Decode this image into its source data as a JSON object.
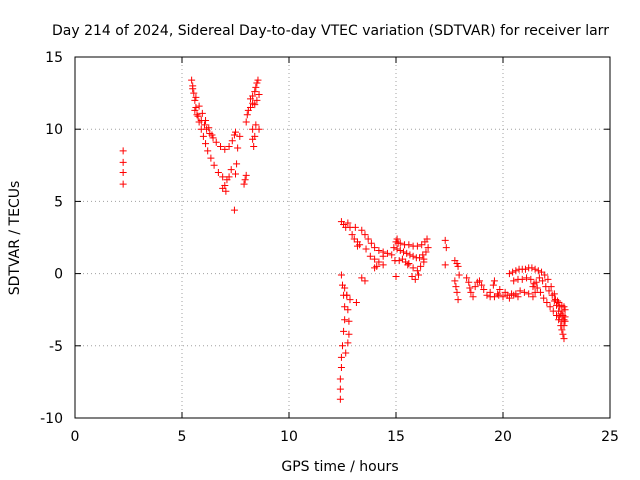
{
  "chart_data": {
    "type": "scatter",
    "title": "Day 214 of 2024, Sidereal Day-to-day VTEC variation (SDTVAR) for receiver larr",
    "xlabel": "GPS time / hours",
    "ylabel": "SDTVAR / TECUs",
    "xlim": [
      0,
      25
    ],
    "ylim": [
      -10,
      15
    ],
    "xticks": [
      "0",
      "5",
      "10",
      "15",
      "20",
      "25"
    ],
    "yticks": [
      "-10",
      "-5",
      "0",
      "5",
      "10",
      "15"
    ],
    "grid": true,
    "marker": "+",
    "color": "#ff0000",
    "series": [
      {
        "name": "SDTVAR",
        "points": [
          [
            2.25,
            8.5
          ],
          [
            2.25,
            7.7
          ],
          [
            2.25,
            7.0
          ],
          [
            2.25,
            6.2
          ],
          [
            5.45,
            13.4
          ],
          [
            5.5,
            13.0
          ],
          [
            5.55,
            12.5
          ],
          [
            5.6,
            12.0
          ],
          [
            5.65,
            11.5
          ],
          [
            5.7,
            11.0
          ],
          [
            5.8,
            10.5
          ],
          [
            5.9,
            10.0
          ],
          [
            6.0,
            9.5
          ],
          [
            6.1,
            9.0
          ],
          [
            6.2,
            8.5
          ],
          [
            6.35,
            8.0
          ],
          [
            6.5,
            7.5
          ],
          [
            6.7,
            7.0
          ],
          [
            6.9,
            6.7
          ],
          [
            7.1,
            6.5
          ],
          [
            7.2,
            6.7
          ],
          [
            7.3,
            7.2
          ],
          [
            5.5,
            12.8
          ],
          [
            5.65,
            12.2
          ],
          [
            5.8,
            11.6
          ],
          [
            5.95,
            11.1
          ],
          [
            6.1,
            10.6
          ],
          [
            6.25,
            10.1
          ],
          [
            6.4,
            9.6
          ],
          [
            6.6,
            9.1
          ],
          [
            6.8,
            8.8
          ],
          [
            7.0,
            8.6
          ],
          [
            7.2,
            8.8
          ],
          [
            7.35,
            9.2
          ],
          [
            7.45,
            9.6
          ],
          [
            5.6,
            11.3
          ],
          [
            5.75,
            10.9
          ],
          [
            5.9,
            10.6
          ],
          [
            6.05,
            10.3
          ],
          [
            6.15,
            10.0
          ],
          [
            6.3,
            9.7
          ],
          [
            6.45,
            9.4
          ],
          [
            6.9,
            5.9
          ],
          [
            7.0,
            6.1
          ],
          [
            7.05,
            5.7
          ],
          [
            7.45,
            4.4
          ],
          [
            7.5,
            6.9
          ],
          [
            7.55,
            7.6
          ],
          [
            7.6,
            8.7
          ],
          [
            7.7,
            9.5
          ],
          [
            7.5,
            9.8
          ],
          [
            7.9,
            6.2
          ],
          [
            7.95,
            6.5
          ],
          [
            8.0,
            6.8
          ],
          [
            8.0,
            10.5
          ],
          [
            8.05,
            11.0
          ],
          [
            8.1,
            11.3
          ],
          [
            8.2,
            11.5
          ],
          [
            8.3,
            11.8
          ],
          [
            8.3,
            10.0
          ],
          [
            8.3,
            9.3
          ],
          [
            8.35,
            8.8
          ],
          [
            8.4,
            9.5
          ],
          [
            8.45,
            10.3
          ],
          [
            8.2,
            12.1
          ],
          [
            8.3,
            12.3
          ],
          [
            8.4,
            12.6
          ],
          [
            8.45,
            12.9
          ],
          [
            8.5,
            13.2
          ],
          [
            8.55,
            13.4
          ],
          [
            8.4,
            11.7
          ],
          [
            8.5,
            12.0
          ],
          [
            8.6,
            12.4
          ],
          [
            8.6,
            10.0
          ],
          [
            12.45,
            -0.1
          ],
          [
            12.5,
            -0.8
          ],
          [
            12.55,
            -1.5
          ],
          [
            12.6,
            -2.3
          ],
          [
            12.6,
            -3.2
          ],
          [
            12.55,
            -4.0
          ],
          [
            12.5,
            -5.0
          ],
          [
            12.45,
            -5.8
          ],
          [
            12.45,
            -6.5
          ],
          [
            12.4,
            -7.3
          ],
          [
            12.4,
            -8.0
          ],
          [
            12.4,
            -8.7
          ],
          [
            12.6,
            -1.0
          ],
          [
            12.7,
            -1.5
          ],
          [
            12.75,
            -2.5
          ],
          [
            12.8,
            -3.3
          ],
          [
            12.8,
            -4.2
          ],
          [
            12.75,
            -4.8
          ],
          [
            12.65,
            -5.5
          ],
          [
            12.45,
            3.6
          ],
          [
            12.55,
            3.4
          ],
          [
            12.65,
            3.2
          ],
          [
            12.75,
            3.5
          ],
          [
            12.85,
            3.2
          ],
          [
            12.95,
            2.7
          ],
          [
            13.05,
            2.4
          ],
          [
            13.2,
            2.2
          ],
          [
            13.1,
            3.2
          ],
          [
            13.2,
            1.9
          ],
          [
            13.3,
            2.0
          ],
          [
            13.4,
            3.0
          ],
          [
            13.55,
            2.7
          ],
          [
            13.7,
            2.4
          ],
          [
            13.85,
            2.1
          ],
          [
            14.0,
            1.8
          ],
          [
            14.2,
            1.6
          ],
          [
            14.4,
            1.5
          ],
          [
            14.6,
            1.4
          ],
          [
            14.8,
            1.3
          ],
          [
            13.6,
            1.7
          ],
          [
            13.8,
            1.2
          ],
          [
            14.0,
            1.0
          ],
          [
            14.2,
            0.8
          ],
          [
            14.4,
            0.6
          ],
          [
            14.0,
            0.4
          ],
          [
            14.1,
            0.5
          ],
          [
            14.4,
            1.2
          ],
          [
            12.7,
            -1.5
          ],
          [
            12.85,
            -1.8
          ],
          [
            13.15,
            -2.0
          ],
          [
            13.4,
            -0.3
          ],
          [
            13.55,
            -0.5
          ],
          [
            14.9,
            1.8
          ],
          [
            15.05,
            1.7
          ],
          [
            15.2,
            1.6
          ],
          [
            15.35,
            1.5
          ],
          [
            15.5,
            1.4
          ],
          [
            15.65,
            1.3
          ],
          [
            15.8,
            1.2
          ],
          [
            15.95,
            1.1
          ],
          [
            16.1,
            1.1
          ],
          [
            16.25,
            1.3
          ],
          [
            16.4,
            1.5
          ],
          [
            16.5,
            1.8
          ],
          [
            15.0,
            2.2
          ],
          [
            15.2,
            2.1
          ],
          [
            15.4,
            2.0
          ],
          [
            15.6,
            2.0
          ],
          [
            15.8,
            1.9
          ],
          [
            16.0,
            1.9
          ],
          [
            16.2,
            2.0
          ],
          [
            16.35,
            2.2
          ],
          [
            16.45,
            2.4
          ],
          [
            15.6,
            0.7
          ],
          [
            15.8,
            0.4
          ],
          [
            16.0,
            0.2
          ],
          [
            15.75,
            -0.2
          ],
          [
            15.9,
            -0.4
          ],
          [
            16.05,
            -0.1
          ],
          [
            16.15,
            0.5
          ],
          [
            16.3,
            0.8
          ],
          [
            16.3,
            1.0
          ],
          [
            14.95,
            0.9
          ],
          [
            15.15,
            0.9
          ],
          [
            15.3,
            1.0
          ],
          [
            15.45,
            0.8
          ],
          [
            15.55,
            0.6
          ],
          [
            15.0,
            -0.2
          ],
          [
            15.05,
            2.4
          ],
          [
            15.1,
            2.1
          ],
          [
            17.3,
            2.3
          ],
          [
            17.35,
            1.8
          ],
          [
            17.3,
            0.6
          ],
          [
            17.75,
            0.9
          ],
          [
            17.85,
            0.7
          ],
          [
            17.9,
            0.5
          ],
          [
            17.95,
            -0.1
          ],
          [
            17.75,
            -0.5
          ],
          [
            17.8,
            -0.9
          ],
          [
            17.85,
            -1.3
          ],
          [
            17.9,
            -1.8
          ],
          [
            18.3,
            -0.3
          ],
          [
            18.4,
            -0.6
          ],
          [
            18.45,
            -1.0
          ],
          [
            18.5,
            -1.3
          ],
          [
            18.6,
            -1.6
          ],
          [
            18.7,
            -0.9
          ],
          [
            18.8,
            -0.6
          ],
          [
            18.9,
            -0.5
          ],
          [
            19.0,
            -0.8
          ],
          [
            19.1,
            -1.1
          ],
          [
            19.25,
            -1.5
          ],
          [
            19.4,
            -1.6
          ],
          [
            19.6,
            -1.6
          ],
          [
            19.75,
            -1.4
          ],
          [
            19.85,
            -1.1
          ],
          [
            19.4,
            -1.3
          ],
          [
            19.55,
            -0.8
          ],
          [
            19.6,
            -0.5
          ],
          [
            19.8,
            -1.5
          ],
          [
            20.0,
            -1.6
          ],
          [
            20.2,
            -1.5
          ],
          [
            20.4,
            -1.4
          ],
          [
            20.5,
            -1.5
          ],
          [
            20.6,
            -1.4
          ],
          [
            20.8,
            -1.2
          ],
          [
            21.0,
            -1.3
          ],
          [
            21.2,
            -1.4
          ],
          [
            21.4,
            -1.6
          ],
          [
            21.5,
            -1.3
          ],
          [
            20.1,
            -1.3
          ],
          [
            20.3,
            -1.7
          ],
          [
            20.7,
            -1.6
          ],
          [
            20.3,
            0.0
          ],
          [
            20.45,
            0.1
          ],
          [
            20.6,
            0.2
          ],
          [
            20.75,
            0.3
          ],
          [
            20.9,
            0.3
          ],
          [
            21.05,
            0.3
          ],
          [
            21.2,
            0.4
          ],
          [
            21.35,
            0.4
          ],
          [
            21.5,
            0.3
          ],
          [
            21.65,
            0.2
          ],
          [
            21.8,
            0.1
          ],
          [
            21.95,
            -0.1
          ],
          [
            22.1,
            -0.4
          ],
          [
            22.25,
            -0.9
          ],
          [
            22.4,
            -1.4
          ],
          [
            22.55,
            -1.9
          ],
          [
            22.65,
            -2.3
          ],
          [
            22.75,
            -2.6
          ],
          [
            22.8,
            -2.9
          ],
          [
            22.85,
            -3.2
          ],
          [
            20.5,
            -0.5
          ],
          [
            20.7,
            -0.4
          ],
          [
            20.9,
            -0.4
          ],
          [
            21.1,
            -0.3
          ],
          [
            21.3,
            -0.4
          ],
          [
            21.45,
            -0.7
          ],
          [
            21.6,
            -1.0
          ],
          [
            21.75,
            -1.3
          ],
          [
            21.9,
            -1.7
          ],
          [
            22.05,
            -2.0
          ],
          [
            22.2,
            -2.3
          ],
          [
            22.35,
            -2.6
          ],
          [
            22.5,
            -2.9
          ],
          [
            22.6,
            -3.2
          ],
          [
            22.7,
            -3.6
          ],
          [
            22.75,
            -3.9
          ],
          [
            22.8,
            -4.2
          ],
          [
            22.85,
            -4.5
          ],
          [
            21.4,
            -0.9
          ],
          [
            21.55,
            -0.6
          ],
          [
            21.7,
            -0.3
          ],
          [
            21.85,
            -0.5
          ],
          [
            22.0,
            -0.9
          ],
          [
            22.15,
            -1.2
          ],
          [
            22.3,
            -1.5
          ],
          [
            22.45,
            -1.8
          ],
          [
            22.6,
            -2.0
          ],
          [
            22.75,
            -2.2
          ],
          [
            22.9,
            -2.5
          ],
          [
            22.9,
            -3.0
          ],
          [
            22.9,
            -3.3
          ],
          [
            22.85,
            -3.6
          ],
          [
            22.6,
            -2.6
          ],
          [
            22.5,
            -2.2
          ],
          [
            22.7,
            -2.8
          ],
          [
            22.75,
            -3.3
          ],
          [
            22.65,
            -3.0
          ],
          [
            22.4,
            -1.9
          ],
          [
            22.85,
            -2.3
          ]
        ]
      }
    ]
  }
}
